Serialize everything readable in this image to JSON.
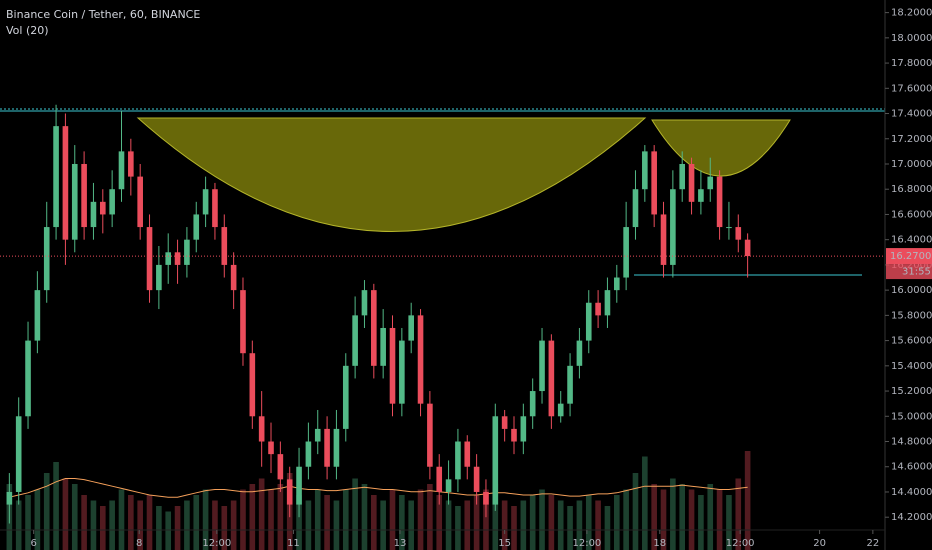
{
  "chart_data": {
    "type": "candlestick",
    "title": "Binance Coin / Tether, 60, BINANCE",
    "indicator_label": "Vol (20)",
    "up_color": "#53b987",
    "down_color": "#eb4d5c",
    "open": [
      14.3,
      14.4,
      15.0,
      15.6,
      16.0,
      16.5,
      17.3,
      16.4,
      17.0,
      16.5,
      16.7,
      16.6,
      16.8,
      17.1,
      16.9,
      16.5,
      16.0,
      16.2,
      16.3,
      16.2,
      16.4,
      16.6,
      16.8,
      16.5,
      16.2,
      16.0,
      15.5,
      15.0,
      14.8,
      14.7,
      14.5,
      14.3,
      14.6,
      14.8,
      14.9,
      14.6,
      14.9,
      15.4,
      15.8,
      16.0,
      15.4,
      15.7,
      15.1,
      15.6,
      15.8,
      15.1,
      14.6,
      14.4,
      14.5,
      14.8,
      14.6,
      14.4,
      14.3,
      15.0,
      14.9,
      14.8,
      15.0,
      15.2,
      15.6,
      15.0,
      15.1,
      15.4,
      15.6,
      15.9,
      15.8,
      16.0,
      16.1,
      16.5,
      16.8,
      17.1,
      16.6,
      16.2,
      16.8,
      17.0,
      16.7,
      16.8,
      16.9,
      16.5,
      16.5,
      16.4
    ],
    "high": [
      14.55,
      15.15,
      15.75,
      16.15,
      16.7,
      17.47,
      17.4,
      17.15,
      17.1,
      16.85,
      16.8,
      16.95,
      17.42,
      17.2,
      17.0,
      16.6,
      16.35,
      16.45,
      16.4,
      16.5,
      16.7,
      16.9,
      16.85,
      16.6,
      16.3,
      16.1,
      15.6,
      15.2,
      14.95,
      14.8,
      14.6,
      14.75,
      14.95,
      15.05,
      15.0,
      15.05,
      15.5,
      15.95,
      16.08,
      16.05,
      15.85,
      15.8,
      15.7,
      15.9,
      15.85,
      15.2,
      14.7,
      14.65,
      14.9,
      14.85,
      14.7,
      14.5,
      15.1,
      15.05,
      15.0,
      15.1,
      15.3,
      15.7,
      15.65,
      15.2,
      15.5,
      15.7,
      16.0,
      16.0,
      16.1,
      16.2,
      16.7,
      16.95,
      17.15,
      17.15,
      16.7,
      16.95,
      17.1,
      17.05,
      16.95,
      17.05,
      16.95,
      16.7,
      16.6,
      16.45
    ],
    "low": [
      14.15,
      14.3,
      14.9,
      15.5,
      15.9,
      16.4,
      16.2,
      16.3,
      16.4,
      16.4,
      16.45,
      16.5,
      16.7,
      16.75,
      16.4,
      15.9,
      15.85,
      16.05,
      16.05,
      16.1,
      16.3,
      16.5,
      16.4,
      16.1,
      15.85,
      15.4,
      14.9,
      14.6,
      14.55,
      14.4,
      14.2,
      14.2,
      14.5,
      14.7,
      14.5,
      14.5,
      14.8,
      15.3,
      15.7,
      15.3,
      15.3,
      15.0,
      15.0,
      15.5,
      15.0,
      14.5,
      14.3,
      14.3,
      14.4,
      14.5,
      14.3,
      14.2,
      14.25,
      14.8,
      14.7,
      14.7,
      14.9,
      15.1,
      14.9,
      14.95,
      15.0,
      15.3,
      15.5,
      15.7,
      15.7,
      15.9,
      16.0,
      16.4,
      16.7,
      16.5,
      16.1,
      16.1,
      16.7,
      16.6,
      16.6,
      16.7,
      16.4,
      16.4,
      16.3,
      16.1
    ],
    "close": [
      14.4,
      15.0,
      15.6,
      16.0,
      16.5,
      17.3,
      16.4,
      17.0,
      16.5,
      16.7,
      16.6,
      16.8,
      17.1,
      16.9,
      16.5,
      16.0,
      16.2,
      16.3,
      16.2,
      16.4,
      16.6,
      16.8,
      16.5,
      16.2,
      16.0,
      15.5,
      15.0,
      14.8,
      14.7,
      14.5,
      14.3,
      14.6,
      14.8,
      14.9,
      14.6,
      14.9,
      15.4,
      15.8,
      16.0,
      15.4,
      15.7,
      15.1,
      15.6,
      15.8,
      15.1,
      14.6,
      14.4,
      14.5,
      14.8,
      14.6,
      14.4,
      14.3,
      15.0,
      14.9,
      14.8,
      15.0,
      15.2,
      15.6,
      15.0,
      15.1,
      15.4,
      15.6,
      15.9,
      15.8,
      16.0,
      16.1,
      16.5,
      16.8,
      17.1,
      16.6,
      16.2,
      16.8,
      17.0,
      16.7,
      16.8,
      16.9,
      16.5,
      16.5,
      16.4,
      16.27
    ],
    "volume": [
      60,
      45,
      50,
      55,
      70,
      80,
      65,
      60,
      50,
      45,
      40,
      45,
      55,
      50,
      45,
      50,
      40,
      35,
      40,
      45,
      50,
      55,
      45,
      40,
      45,
      55,
      60,
      65,
      55,
      60,
      70,
      50,
      45,
      55,
      50,
      45,
      55,
      65,
      60,
      50,
      45,
      55,
      50,
      45,
      55,
      60,
      50,
      45,
      40,
      45,
      50,
      55,
      60,
      45,
      40,
      45,
      50,
      55,
      50,
      45,
      40,
      45,
      50,
      45,
      40,
      50,
      55,
      70,
      85,
      60,
      55,
      65,
      60,
      55,
      50,
      60,
      55,
      50,
      65,
      90
    ],
    "volume_ma": [
      48,
      50,
      52,
      55,
      58,
      62,
      65,
      65,
      64,
      62,
      60,
      58,
      56,
      54,
      52,
      50,
      49,
      48,
      48,
      50,
      52,
      54,
      55,
      55,
      54,
      53,
      53,
      54,
      55,
      56,
      58,
      56,
      55,
      55,
      54,
      54,
      55,
      56,
      57,
      56,
      55,
      55,
      54,
      53,
      53,
      54,
      53,
      52,
      51,
      50,
      50,
      51,
      52,
      52,
      51,
      50,
      50,
      51,
      51,
      50,
      49,
      49,
      50,
      51,
      51,
      52,
      54,
      56,
      58,
      58,
      58,
      58,
      59,
      58,
      57,
      56,
      55,
      55,
      56,
      57
    ],
    "volume_ma_color": "#f5a05a",
    "volume_lim": [
      0,
      500
    ],
    "ylim": [
      13.94,
      18.3
    ],
    "yticks": [
      {
        "value": 14.2,
        "label": "14.2000"
      },
      {
        "value": 14.4,
        "label": "14.4000"
      },
      {
        "value": 14.6,
        "label": "14.6000"
      },
      {
        "value": 14.8,
        "label": "14.8000"
      },
      {
        "value": 15.0,
        "label": "15.0000"
      },
      {
        "value": 15.2,
        "label": "15.2000"
      },
      {
        "value": 15.4,
        "label": "15.4000"
      },
      {
        "value": 15.6,
        "label": "15.6000"
      },
      {
        "value": 15.8,
        "label": "15.8000"
      },
      {
        "value": 16.0,
        "label": "16.0000"
      },
      {
        "value": 16.2,
        "label": "16.2000"
      },
      {
        "value": 16.4,
        "label": "16.4000"
      },
      {
        "value": 16.6,
        "label": "16.6000"
      },
      {
        "value": 16.8,
        "label": "16.8000"
      },
      {
        "value": 17.0,
        "label": "17.0000"
      },
      {
        "value": 17.2,
        "label": "17.2000"
      },
      {
        "value": 17.4,
        "label": "17.4000"
      },
      {
        "value": 17.6,
        "label": "17.6000"
      },
      {
        "value": 17.8,
        "label": "17.8000"
      },
      {
        "value": 18.0,
        "label": "18.0000"
      },
      {
        "value": 18.2,
        "label": "18.2000"
      }
    ],
    "xlim": [
      -1,
      93.7
    ],
    "xticks": [
      {
        "value": 2.6,
        "label": "6"
      },
      {
        "value": 13.9,
        "label": "8"
      },
      {
        "value": 22.2,
        "label": "12:00"
      },
      {
        "value": 30.4,
        "label": "11"
      },
      {
        "value": 41.8,
        "label": "13"
      },
      {
        "value": 53.0,
        "label": "15"
      },
      {
        "value": 61.8,
        "label": "12:00"
      },
      {
        "value": 69.6,
        "label": "18"
      },
      {
        "value": 78.2,
        "label": "12:00"
      },
      {
        "value": 86.7,
        "label": "20"
      },
      {
        "value": 92.4,
        "label": "22"
      }
    ],
    "last_price": {
      "value": 16.27,
      "label": "16.2700"
    },
    "countdown": "31:55"
  }
}
